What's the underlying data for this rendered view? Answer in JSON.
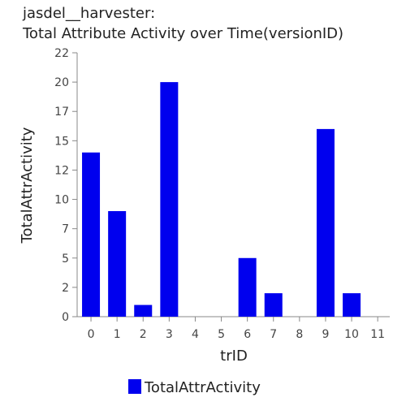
{
  "chart_data": {
    "type": "bar",
    "title_lines": [
      "jasdel__harvester:",
      "Total Attribute Activity over Time(versionID)"
    ],
    "xlabel": "trID",
    "ylabel": "TotalAttrActivity",
    "categories": [
      "0",
      "1",
      "2",
      "3",
      "4",
      "5",
      "6",
      "7",
      "8",
      "9",
      "10",
      "11"
    ],
    "series": [
      {
        "name": "TotalAttrActivity",
        "values": [
          14,
          9,
          1,
          20,
          0,
          0,
          5,
          2,
          0,
          16,
          2,
          0
        ],
        "color": "#0000ee"
      }
    ],
    "yticks": [
      "0",
      "2",
      "5",
      "7",
      "10",
      "12",
      "15",
      "17",
      "20",
      "22"
    ],
    "ylim": [
      0,
      22.5
    ],
    "grid": false,
    "legend_position": "bottom"
  }
}
